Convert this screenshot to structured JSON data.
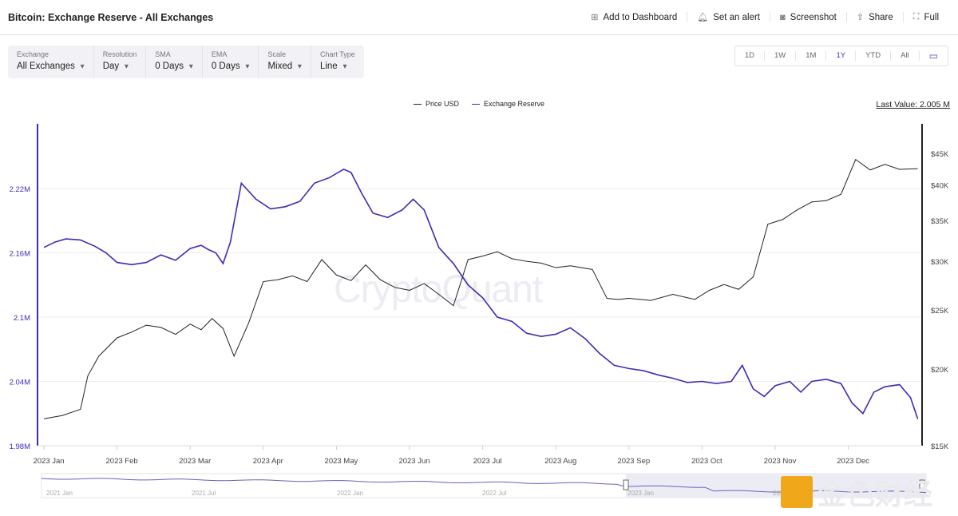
{
  "header": {
    "title": "Bitcoin: Exchange Reserve - All Exchanges",
    "actions": [
      "Add to Dashboard",
      "Set an alert",
      "Screenshot",
      "Share",
      "Full"
    ]
  },
  "filters": [
    {
      "label": "Exchange",
      "value": "All Exchanges"
    },
    {
      "label": "Resolution",
      "value": "Day"
    },
    {
      "label": "SMA",
      "value": "0 Days"
    },
    {
      "label": "EMA",
      "value": "0 Days"
    },
    {
      "label": "Scale",
      "value": "Mixed"
    },
    {
      "label": "Chart Type",
      "value": "Line"
    }
  ],
  "ranges": [
    "1D",
    "1W",
    "1M",
    "1Y",
    "YTD",
    "All"
  ],
  "active_range": "1Y",
  "last_value": "Last Value: 2.005 M",
  "watermark": "CryptoQuant",
  "logo_text": "金色财经",
  "navigator": {
    "labels": [
      "2021 Jan",
      "2021 Jul",
      "2022 Jan",
      "2022 Jul",
      "2023 Jan",
      "2023 Jul"
    ]
  },
  "chart_data": {
    "type": "line",
    "title": "Bitcoin: Exchange Reserve - All Exchanges",
    "x_ticks": [
      "2023 Jan",
      "2023 Feb",
      "2023 Mar",
      "2023 Apr",
      "2023 May",
      "2023 Jun",
      "2023 Jul",
      "2023 Aug",
      "2023 Sep",
      "2023 Oct",
      "2023 Nov",
      "2023 Dec"
    ],
    "y_left": {
      "label": "Exchange Reserve",
      "ticks": [
        "1.98M",
        "2.04M",
        "2.1M",
        "2.16M",
        "2.22M"
      ],
      "range": [
        1.98,
        2.28
      ]
    },
    "y_right": {
      "label": "Price USD",
      "scale": "log",
      "ticks": [
        "$15K",
        "$20K",
        "$25K",
        "$30K",
        "$35K",
        "$40K",
        "$45K"
      ],
      "range": [
        15,
        50
      ]
    },
    "legend": "top-center",
    "colors": {
      "price": "#222222",
      "reserve": "#3b2db4"
    },
    "series": [
      {
        "name": "Price USD",
        "unit": "K USD",
        "x_months": [
          0,
          0.25,
          0.5,
          0.6,
          0.75,
          1,
          1.2,
          1.4,
          1.6,
          1.8,
          2,
          2.15,
          2.3,
          2.45,
          2.6,
          2.8,
          3,
          3.2,
          3.4,
          3.6,
          3.8,
          4,
          4.2,
          4.4,
          4.6,
          4.8,
          5,
          5.2,
          5.4,
          5.6,
          5.8,
          6,
          6.2,
          6.4,
          6.6,
          6.8,
          7,
          7.2,
          7.5,
          7.7,
          7.85,
          8,
          8.3,
          8.6,
          8.9,
          9.1,
          9.3,
          9.5,
          9.7,
          9.9,
          10.1,
          10.3,
          10.5,
          10.7,
          10.9,
          11.1,
          11.3,
          11.5,
          11.7,
          11.95
        ],
        "values": [
          16.6,
          16.8,
          17.2,
          19.5,
          21.0,
          22.5,
          23.0,
          23.6,
          23.4,
          22.8,
          23.7,
          23.2,
          24.2,
          23.3,
          21.0,
          23.8,
          27.8,
          28.0,
          28.4,
          27.8,
          30.2,
          28.5,
          27.9,
          29.6,
          28.0,
          27.2,
          26.9,
          27.6,
          26.5,
          25.4,
          30.2,
          30.6,
          31.1,
          30.3,
          30.0,
          29.8,
          29.3,
          29.5,
          29.1,
          26.1,
          26.0,
          26.1,
          25.9,
          26.5,
          26.0,
          26.9,
          27.5,
          27.0,
          28.3,
          34.5,
          35.1,
          36.4,
          37.5,
          37.7,
          38.6,
          44.0,
          42.3,
          43.2,
          42.4,
          42.5
        ]
      },
      {
        "name": "Exchange Reserve",
        "unit": "M BTC",
        "x_months": [
          0,
          0.15,
          0.3,
          0.5,
          0.7,
          0.85,
          1,
          1.2,
          1.4,
          1.6,
          1.8,
          2,
          2.15,
          2.25,
          2.35,
          2.45,
          2.55,
          2.7,
          2.9,
          3.1,
          3.3,
          3.5,
          3.7,
          3.9,
          4.1,
          4.2,
          4.35,
          4.5,
          4.7,
          4.9,
          5.05,
          5.2,
          5.4,
          5.6,
          5.8,
          6,
          6.2,
          6.4,
          6.6,
          6.8,
          7,
          7.2,
          7.4,
          7.6,
          7.8,
          8,
          8.2,
          8.4,
          8.6,
          8.8,
          9,
          9.2,
          9.4,
          9.55,
          9.7,
          9.85,
          10,
          10.2,
          10.35,
          10.5,
          10.7,
          10.9,
          11.05,
          11.2,
          11.35,
          11.5,
          11.7,
          11.85,
          11.95
        ],
        "values": [
          2.165,
          2.17,
          2.173,
          2.172,
          2.166,
          2.16,
          2.151,
          2.149,
          2.151,
          2.158,
          2.153,
          2.164,
          2.167,
          2.163,
          2.16,
          2.15,
          2.17,
          2.225,
          2.21,
          2.201,
          2.203,
          2.208,
          2.225,
          2.23,
          2.238,
          2.235,
          2.215,
          2.197,
          2.193,
          2.2,
          2.21,
          2.2,
          2.165,
          2.15,
          2.13,
          2.118,
          2.1,
          2.096,
          2.085,
          2.082,
          2.084,
          2.09,
          2.08,
          2.066,
          2.055,
          2.052,
          2.05,
          2.046,
          2.043,
          2.039,
          2.04,
          2.038,
          2.04,
          2.055,
          2.033,
          2.026,
          2.036,
          2.04,
          2.03,
          2.04,
          2.042,
          2.038,
          2.02,
          2.01,
          2.03,
          2.035,
          2.037,
          2.025,
          2.005
        ]
      }
    ]
  }
}
